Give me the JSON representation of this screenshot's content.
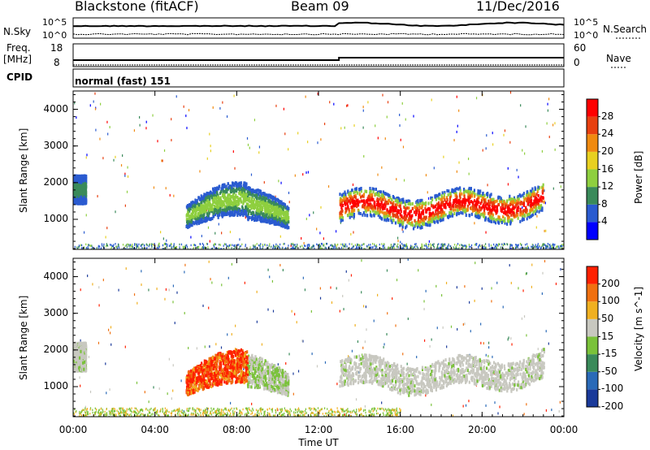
{
  "header": {
    "station": "Blackstone (fitACF)",
    "beam": "Beam 09",
    "date": "11/Dec/2016"
  },
  "panels": {
    "nsky_label": "N.Sky",
    "nsearch_label": "N.Search",
    "freq_label_1": "Freq.",
    "freq_label_2": "[MHz]",
    "nave_label": "Nave",
    "cpid_label": "CPID",
    "cpid_value": "normal (fast) 151",
    "noise_ticks_left": [
      "10^5",
      "10^0"
    ],
    "noise_ticks_right": [
      "10^5",
      "10^0"
    ],
    "freq_ticks": [
      "18",
      "8"
    ],
    "nave_ticks": [
      "60",
      "0"
    ]
  },
  "chart_data": [
    {
      "type": "heatmap",
      "name": "power",
      "ylabel": "Slant Range [km]",
      "xlabel": "Time UT",
      "x_ticks": [
        "00:00",
        "04:00",
        "08:00",
        "12:00",
        "16:00",
        "20:00",
        "00:00"
      ],
      "xlim_hours": [
        0,
        24
      ],
      "y_ticks": [
        1000,
        2000,
        3000,
        4000
      ],
      "ylim": [
        180,
        4500
      ],
      "colorbar": {
        "label": "Power [dB]",
        "ticks": [
          "28",
          "24",
          "20",
          "16",
          "12",
          "8",
          "4"
        ],
        "colors": [
          "#0000ff",
          "#2a5bd0",
          "#3a8a5a",
          "#8ecf3f",
          "#e8d020",
          "#f08a10",
          "#e84010",
          "#ff0000"
        ]
      },
      "regions": [
        {
          "t0": 0.0,
          "t1": 0.6,
          "r0": 1450,
          "r1": 2300,
          "level": 1
        },
        {
          "t0": 5.5,
          "t1": 10.5,
          "r0": 700,
          "r1": 1700,
          "level": 3
        },
        {
          "t0": 13.0,
          "t1": 23.0,
          "r0": 700,
          "r1": 2100,
          "level": 5
        }
      ]
    },
    {
      "type": "heatmap",
      "name": "velocity",
      "ylabel": "Slant Range [km]",
      "xlabel": "Time UT",
      "x_ticks": [
        "00:00",
        "04:00",
        "08:00",
        "12:00",
        "16:00",
        "20:00",
        "00:00"
      ],
      "xlim_hours": [
        0,
        24
      ],
      "y_ticks": [
        1000,
        2000,
        3000,
        4000
      ],
      "ylim": [
        180,
        4500
      ],
      "colorbar": {
        "label": "Velocity [m s^-1]",
        "ticks": [
          "200",
          "100",
          "50",
          "15",
          "-15",
          "-50",
          "-100",
          "-200"
        ],
        "colors": [
          "#1a3a9a",
          "#2a6ab8",
          "#3a8a5a",
          "#7ac23a",
          "#c8c8c0",
          "#f0b020",
          "#f07010",
          "#ff2000"
        ]
      },
      "regions": [
        {
          "t0": 0.0,
          "t1": 0.6,
          "r0": 1450,
          "r1": 2300,
          "level": 4
        },
        {
          "t0": 5.5,
          "t1": 10.5,
          "r0": 700,
          "r1": 1700,
          "level": 7
        },
        {
          "t0": 13.0,
          "t1": 23.0,
          "r0": 700,
          "r1": 2100,
          "level": 4
        }
      ]
    }
  ]
}
